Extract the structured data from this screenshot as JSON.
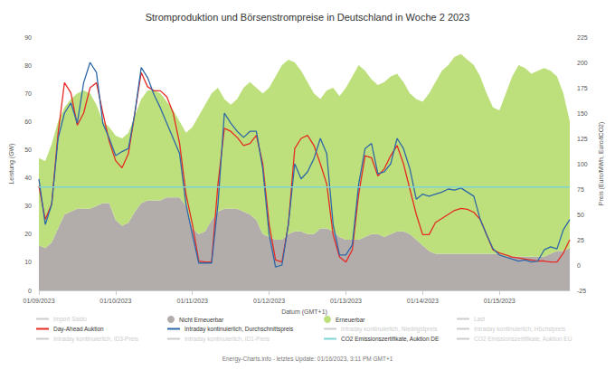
{
  "chart_data": {
    "type": "line",
    "title": "Stromproduktion und Börsenstrompreise in Deutschland in Woche 2 2023",
    "xlabel": "Datum (GMT+1)",
    "ylabel": "Leistung (GW)",
    "y2label": "Preis (Euro/MWh, Euro/tCO2)",
    "annotations": [
      "Energy-Charts.info - letztes Update: 01/16/2023, 3:11 PM GMT+1"
    ],
    "categories": [
      "01/09/2023",
      null,
      null,
      null,
      null,
      null,
      null,
      null,
      null,
      null,
      null,
      null,
      "01/10/2023",
      null,
      null,
      null,
      null,
      null,
      null,
      null,
      null,
      null,
      null,
      null,
      "01/11/2023",
      null,
      null,
      null,
      null,
      null,
      null,
      null,
      null,
      null,
      null,
      null,
      "01/12/2023",
      null,
      null,
      null,
      null,
      null,
      null,
      null,
      null,
      null,
      null,
      null,
      "01/13/2023",
      null,
      null,
      null,
      null,
      null,
      null,
      null,
      null,
      null,
      null,
      null,
      "01/14/2023",
      null,
      null,
      null,
      null,
      null,
      null,
      null,
      null,
      null,
      null,
      null,
      "01/15/2023",
      null,
      null,
      null,
      null,
      null,
      null,
      null,
      null,
      null,
      null,
      null
    ],
    "ylim": [
      0,
      90
    ],
    "yticks": [
      0,
      10,
      20,
      30,
      40,
      50,
      60,
      70,
      80,
      90
    ],
    "y2lim": [
      -25,
      225
    ],
    "y2ticks": [
      -25,
      0,
      25,
      50,
      75,
      100,
      125,
      150,
      175,
      200,
      225
    ],
    "grid": false,
    "legend": "bottom",
    "stacked": true,
    "series": [
      {
        "name": "Import Saldo",
        "type": "line",
        "color": "#8f8f8f",
        "values": [
          null,
          null,
          null,
          null,
          null,
          null,
          null,
          null,
          null,
          null,
          null,
          null,
          null,
          null,
          null,
          null,
          null,
          null,
          null,
          null,
          null,
          null,
          null,
          null,
          null,
          null,
          null,
          null,
          null,
          null,
          null,
          null,
          null,
          null,
          null,
          null,
          null,
          null,
          null,
          null,
          null,
          null,
          null,
          null,
          null,
          null,
          null,
          null,
          null,
          null,
          null,
          null,
          null,
          null,
          null,
          null,
          null,
          null,
          null,
          null,
          null,
          null,
          null,
          null,
          null,
          null,
          null,
          null,
          null,
          null,
          null,
          null,
          null,
          null,
          null,
          null,
          null,
          null,
          null,
          null,
          null,
          null,
          null,
          null
        ]
      },
      {
        "name": "Nicht Erneuerbar",
        "type": "area",
        "color": "#b2acab",
        "values": [
          16,
          15,
          17,
          22,
          27,
          28,
          29,
          29,
          29,
          30,
          31,
          31,
          25,
          23,
          24,
          28,
          31,
          32,
          32,
          32,
          33,
          33,
          33,
          30,
          22,
          20,
          21,
          25,
          28,
          29,
          29,
          29,
          28,
          27,
          25,
          20,
          19,
          18,
          18,
          20,
          21,
          21,
          20,
          20,
          22,
          22,
          21,
          19,
          18,
          18,
          18,
          19,
          20,
          20,
          19,
          20,
          21,
          21,
          20,
          18,
          16,
          14,
          13,
          13,
          13,
          13,
          13,
          13,
          13,
          13,
          13,
          13,
          13,
          12,
          12,
          12,
          12,
          12,
          12,
          12,
          13,
          14,
          14,
          15
        ]
      },
      {
        "name": "Erneuerbar",
        "type": "area",
        "color": "#bde07c",
        "values": [
          31,
          31,
          35,
          38,
          38,
          40,
          41,
          42,
          41,
          36,
          29,
          27,
          30,
          31,
          32,
          34,
          37,
          39,
          39,
          38,
          34,
          31,
          27,
          26,
          36,
          42,
          45,
          45,
          44,
          39,
          37,
          39,
          44,
          47,
          47,
          50,
          53,
          58,
          62,
          62,
          60,
          57,
          54,
          50,
          46,
          49,
          51,
          50,
          54,
          58,
          62,
          59,
          55,
          53,
          55,
          56,
          56,
          53,
          50,
          50,
          51,
          56,
          61,
          65,
          67,
          70,
          71,
          69,
          67,
          63,
          57,
          52,
          51,
          58,
          64,
          68,
          67,
          65,
          66,
          67,
          65,
          62,
          56,
          45
        ]
      },
      {
        "name": "Last",
        "type": "line",
        "color": "#5a5a5a",
        "values": [
          null,
          null,
          null,
          null,
          null,
          null,
          null,
          null,
          null,
          null,
          null,
          null,
          null,
          null,
          null,
          null,
          null,
          null,
          null,
          null,
          null,
          null,
          null,
          null,
          null,
          null,
          null,
          null,
          null,
          null,
          null,
          null,
          null,
          null,
          null,
          null,
          null,
          null,
          null,
          null,
          null,
          null,
          null,
          null,
          null,
          null,
          null,
          null,
          null,
          null,
          null,
          null,
          null,
          null,
          null,
          null,
          null,
          null,
          null,
          null,
          null,
          null,
          null,
          null,
          null,
          null,
          null,
          null,
          null,
          null,
          null,
          null,
          null,
          null,
          null,
          null,
          null,
          null,
          null,
          null,
          null,
          null,
          null,
          null
        ]
      },
      {
        "name": "Day-Ahead Auktion",
        "type": "line",
        "axis": "y2",
        "color": "#e52b24",
        "values": [
          78,
          45,
          60,
          130,
          180,
          170,
          138,
          150,
          175,
          180,
          150,
          122,
          103,
          96,
          110,
          150,
          190,
          176,
          172,
          172,
          166,
          150,
          120,
          70,
          40,
          4,
          3,
          3,
          80,
          135,
          132,
          126,
          118,
          120,
          128,
          100,
          40,
          5,
          3,
          40,
          115,
          125,
          128,
          118,
          100,
          80,
          30,
          8,
          3,
          15,
          70,
          108,
          106,
          88,
          95,
          108,
          118,
          100,
          75,
          50,
          30,
          30,
          42,
          46,
          50,
          54,
          56,
          55,
          52,
          45,
          30,
          15,
          12,
          10,
          8,
          7,
          6,
          5,
          4,
          4,
          3,
          3,
          12,
          25
        ]
      },
      {
        "name": "Intraday kontinuierlich, Durchschnittspreis",
        "type": "line",
        "axis": "y2",
        "color": "#2f68a8",
        "values": [
          85,
          40,
          60,
          125,
          150,
          160,
          140,
          180,
          200,
          190,
          140,
          125,
          108,
          112,
          115,
          150,
          195,
          185,
          168,
          155,
          140,
          125,
          110,
          60,
          30,
          2,
          2,
          2,
          60,
          150,
          140,
          132,
          126,
          132,
          132,
          95,
          30,
          -2,
          0,
          40,
          100,
          85,
          92,
          105,
          125,
          110,
          40,
          10,
          10,
          20,
          80,
          115,
          120,
          90,
          92,
          100,
          125,
          115,
          95,
          65,
          70,
          68,
          70,
          72,
          75,
          74,
          76,
          72,
          68,
          45,
          30,
          16,
          10,
          8,
          6,
          4,
          5,
          3,
          4,
          15,
          18,
          16,
          35,
          45
        ]
      },
      {
        "name": "Intraday kontinuierlich, Niedrigstpreis",
        "type": "line",
        "axis": "y2",
        "color": "#9fc5e8",
        "values": [
          null,
          null,
          null,
          null,
          null,
          null,
          null,
          null,
          null,
          null,
          null,
          null,
          null,
          null,
          null,
          null,
          null,
          null,
          null,
          null,
          null,
          null,
          null,
          null,
          null,
          null,
          null,
          null,
          null,
          null,
          null,
          null,
          null,
          null,
          null,
          null,
          null,
          null,
          null,
          null,
          null,
          null,
          null,
          null,
          null,
          null,
          null,
          null,
          null,
          null,
          null,
          null,
          null,
          null,
          null,
          null,
          null,
          null,
          null,
          null,
          null,
          null,
          null,
          null,
          null,
          null,
          null,
          null,
          null,
          null,
          null,
          null,
          null,
          null,
          null,
          null,
          null,
          null,
          null,
          null,
          null,
          null,
          null,
          null
        ]
      },
      {
        "name": "Intraday kontinuierlich, Höchstpreis",
        "type": "line",
        "axis": "y2",
        "color": "#1f3f73",
        "values": [
          null,
          null,
          null,
          null,
          null,
          null,
          null,
          null,
          null,
          null,
          null,
          null,
          null,
          null,
          null,
          null,
          null,
          null,
          null,
          null,
          null,
          null,
          null,
          null,
          null,
          null,
          null,
          null,
          null,
          null,
          null,
          null,
          null,
          null,
          null,
          null,
          null,
          null,
          null,
          null,
          null,
          null,
          null,
          null,
          null,
          null,
          null,
          null,
          null,
          null,
          null,
          null,
          null,
          null,
          null,
          null,
          null,
          null,
          null,
          null,
          null,
          null,
          null,
          null,
          null,
          null,
          null,
          null,
          null,
          null,
          null,
          null,
          null,
          null,
          null,
          null,
          null,
          null,
          null,
          null,
          null,
          null,
          null,
          null
        ]
      },
      {
        "name": "Intraday kontinuierlich, ID3-Preis",
        "type": "line",
        "axis": "y2",
        "color": "#7f6fb0",
        "values": [
          null,
          null,
          null,
          null,
          null,
          null,
          null,
          null,
          null,
          null,
          null,
          null,
          null,
          null,
          null,
          null,
          null,
          null,
          null,
          null,
          null,
          null,
          null,
          null,
          null,
          null,
          null,
          null,
          null,
          null,
          null,
          null,
          null,
          null,
          null,
          null,
          null,
          null,
          null,
          null,
          null,
          null,
          null,
          null,
          null,
          null,
          null,
          null,
          null,
          null,
          null,
          null,
          null,
          null,
          null,
          null,
          null,
          null,
          null,
          null,
          null,
          null,
          null,
          null,
          null,
          null,
          null,
          null,
          null,
          null,
          null,
          null,
          null,
          null,
          null,
          null,
          null,
          null,
          null,
          null,
          null,
          null,
          null,
          null
        ]
      },
      {
        "name": "Intraday kontinuierlich, ID1-Preis",
        "type": "line",
        "axis": "y2",
        "color": "#c08040",
        "values": [
          null,
          null,
          null,
          null,
          null,
          null,
          null,
          null,
          null,
          null,
          null,
          null,
          null,
          null,
          null,
          null,
          null,
          null,
          null,
          null,
          null,
          null,
          null,
          null,
          null,
          null,
          null,
          null,
          null,
          null,
          null,
          null,
          null,
          null,
          null,
          null,
          null,
          null,
          null,
          null,
          null,
          null,
          null,
          null,
          null,
          null,
          null,
          null,
          null,
          null,
          null,
          null,
          null,
          null,
          null,
          null,
          null,
          null,
          null,
          null,
          null,
          null,
          null,
          null,
          null,
          null,
          null,
          null,
          null,
          null,
          null,
          null,
          null,
          null,
          null,
          null,
          null,
          null,
          null,
          null,
          null,
          null,
          null,
          null
        ]
      },
      {
        "name": "CO2 Emissionszertifikate, Auktion DE",
        "type": "line",
        "axis": "y2",
        "color": "#7fd4d4",
        "values": [
          77,
          77,
          77,
          77,
          77,
          77,
          77,
          77,
          77,
          77,
          77,
          77,
          77,
          77,
          77,
          77,
          77,
          77,
          77,
          77,
          77,
          77,
          77,
          77,
          77,
          77,
          77,
          77,
          77,
          77,
          77,
          77,
          77,
          77,
          77,
          77,
          77,
          77,
          77,
          77,
          77,
          77,
          77,
          77,
          77,
          77,
          77,
          77,
          77,
          77,
          77,
          77,
          77,
          77,
          77,
          77,
          77,
          77,
          77,
          77,
          77,
          77,
          77,
          77,
          77,
          77,
          77,
          77,
          77,
          77,
          77,
          77,
          77,
          77,
          77,
          77,
          77,
          77,
          77,
          77,
          77,
          77,
          77,
          77
        ]
      },
      {
        "name": "CO2 Emissionszertifikate, Auktion EU",
        "type": "line",
        "axis": "y2",
        "color": "#4aa8a8",
        "values": [
          null,
          null,
          null,
          null,
          null,
          null,
          null,
          null,
          null,
          null,
          null,
          null,
          null,
          null,
          null,
          null,
          null,
          null,
          null,
          null,
          null,
          null,
          null,
          null,
          null,
          null,
          null,
          null,
          null,
          null,
          null,
          null,
          null,
          null,
          null,
          null,
          null,
          null,
          null,
          null,
          null,
          null,
          null,
          null,
          null,
          null,
          null,
          null,
          null,
          null,
          null,
          null,
          null,
          null,
          null,
          null,
          null,
          null,
          null,
          null,
          null,
          null,
          null,
          null,
          null,
          null,
          null,
          null,
          null,
          null,
          null,
          null,
          null,
          null,
          null,
          null,
          null,
          null,
          null,
          null,
          null,
          null,
          null,
          null
        ]
      }
    ]
  }
}
